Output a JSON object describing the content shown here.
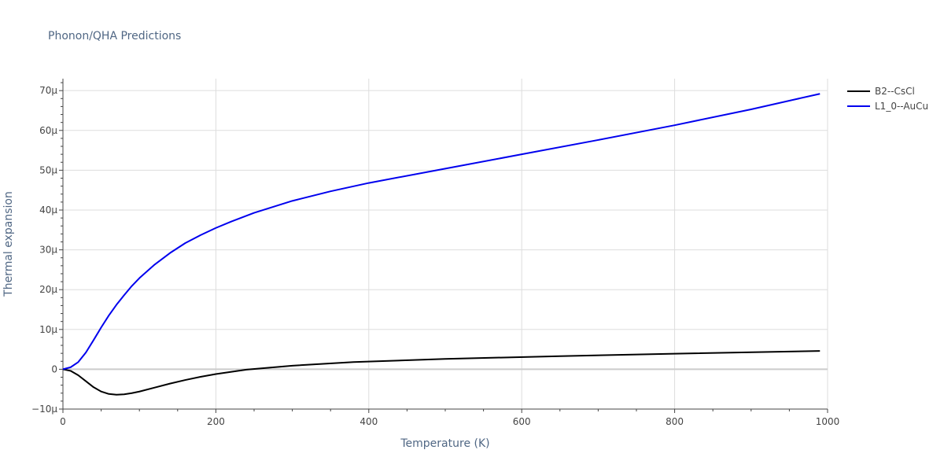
{
  "chart_data": {
    "type": "line",
    "title": "Phonon/QHA Predictions",
    "xlabel": "Temperature (K)",
    "ylabel": "Thermal expansion",
    "xlim": [
      0,
      1000
    ],
    "ylim": [
      -1e-05,
      7.3e-05
    ],
    "x_ticks": [
      0,
      200,
      400,
      600,
      800,
      1000
    ],
    "x_tick_labels": [
      "0",
      "200",
      "400",
      "600",
      "800",
      "1000"
    ],
    "y_ticks": [
      -1e-05,
      0,
      1e-05,
      2e-05,
      3e-05,
      4e-05,
      5e-05,
      6e-05,
      7e-05
    ],
    "y_tick_labels": [
      "−10μ",
      "0",
      "10μ",
      "20μ",
      "30μ",
      "40μ",
      "50μ",
      "60μ",
      "70μ"
    ],
    "grid": true,
    "legend_position": "top-right",
    "series": [
      {
        "name": "B2--CsCl",
        "color": "#000000",
        "x": [
          0,
          10,
          20,
          30,
          40,
          50,
          60,
          70,
          80,
          90,
          100,
          120,
          140,
          160,
          180,
          200,
          240,
          300,
          380,
          500,
          650,
          800,
          990
        ],
        "y": [
          0,
          -4e-07,
          -1.5e-06,
          -3e-06,
          -4.5e-06,
          -5.6e-06,
          -6.2e-06,
          -6.4e-06,
          -6.3e-06,
          -6e-06,
          -5.6e-06,
          -4.6e-06,
          -3.6e-06,
          -2.7e-06,
          -1.9e-06,
          -1.2e-06,
          -1e-07,
          9e-07,
          1.8e-06,
          2.6e-06,
          3.3e-06,
          3.9e-06,
          4.6e-06
        ]
      },
      {
        "name": "L1_0--AuCu",
        "color": "#0000ee",
        "x": [
          0,
          10,
          20,
          30,
          40,
          50,
          60,
          70,
          80,
          90,
          100,
          120,
          140,
          160,
          180,
          200,
          220,
          250,
          300,
          350,
          400,
          500,
          600,
          700,
          800,
          900,
          990
        ],
        "y": [
          0,
          5e-07,
          1.8e-06,
          4.2e-06,
          7.3e-06,
          1.05e-05,
          1.35e-05,
          1.62e-05,
          1.86e-05,
          2.09e-05,
          2.29e-05,
          2.63e-05,
          2.92e-05,
          3.17e-05,
          3.37e-05,
          3.55e-05,
          3.71e-05,
          3.93e-05,
          4.23e-05,
          4.47e-05,
          4.68e-05,
          5.04e-05,
          5.4e-05,
          5.76e-05,
          6.13e-05,
          6.53e-05,
          6.92e-05
        ]
      }
    ]
  }
}
